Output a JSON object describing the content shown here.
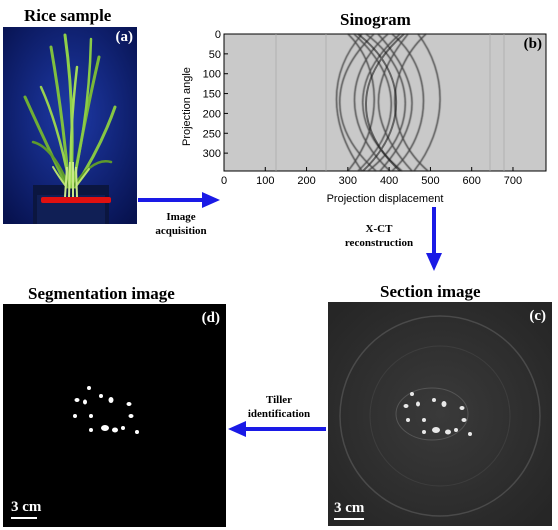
{
  "panels": {
    "rice": {
      "title": "Rice sample",
      "tag": "(a)"
    },
    "sinogram": {
      "title": "Sinogram",
      "tag": "(b)",
      "ylabel": "Projection angle",
      "xlabel": "Projection displacement",
      "yticks": [
        "0",
        "50",
        "100",
        "150",
        "200",
        "250",
        "300"
      ],
      "xticks": [
        "0",
        "100",
        "200",
        "300",
        "400",
        "500",
        "600",
        "700"
      ]
    },
    "segmentation": {
      "title": "Segmentation image",
      "tag": "(d)",
      "scale": "3 cm"
    },
    "section": {
      "title": "Section image",
      "tag": "(c)",
      "scale": "3 cm"
    }
  },
  "arrows": {
    "acquisition": [
      "Image",
      "acquisition"
    ],
    "reconstruction": [
      "X-CT",
      "reconstruction"
    ],
    "identification": [
      "Tiller",
      "identification"
    ]
  },
  "colors": {
    "arrow": "#1a1ae6",
    "cut_line": "#e01010",
    "backdrop": "#0a1a6e"
  }
}
